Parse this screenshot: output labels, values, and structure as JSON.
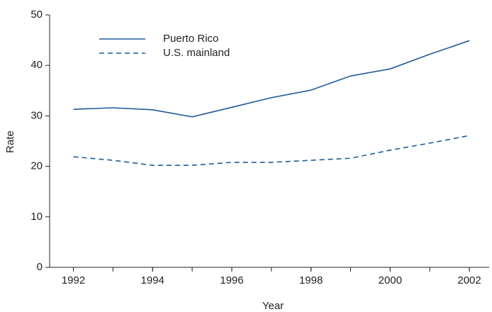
{
  "chart_data": {
    "type": "line",
    "x_label": "Year",
    "y_label": "Rate",
    "x": [
      1992,
      1993,
      1994,
      1995,
      1996,
      1997,
      1998,
      1999,
      2000,
      2001,
      2002
    ],
    "series": [
      {
        "name": "Puerto Rico",
        "color": "#1f5c99",
        "dash": "solid",
        "values": [
          31.3,
          31.6,
          31.2,
          29.8,
          31.7,
          33.6,
          35.1,
          37.9,
          39.3,
          42.2,
          44.9
        ]
      },
      {
        "name": "U.S. mainland",
        "color": "#1f5c99",
        "dash": "dashed",
        "values": [
          21.9,
          21.2,
          20.2,
          20.2,
          20.8,
          20.8,
          21.2,
          21.6,
          23.2,
          24.6,
          26.1
        ]
      }
    ],
    "xlim": [
      1991.4,
      2002.5
    ],
    "xticks": [
      1992,
      1994,
      1996,
      1998,
      2000,
      2002
    ],
    "ylim": [
      0,
      50
    ],
    "yticks": [
      0,
      10,
      20,
      30,
      40,
      50
    ],
    "grid": false,
    "legend": "top-left"
  }
}
